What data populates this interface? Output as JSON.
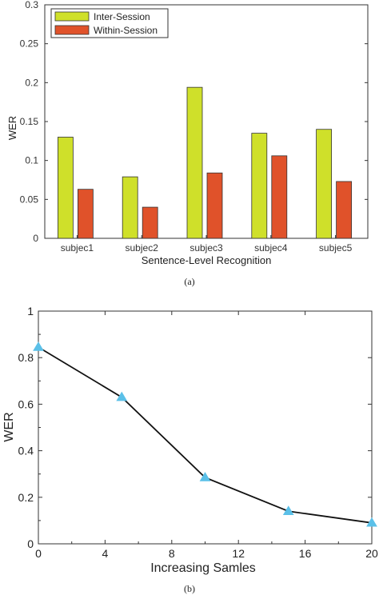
{
  "chart_data": [
    {
      "type": "bar",
      "categories": [
        "subjec1",
        "subjec2",
        "subjec3",
        "subjec4",
        "subjec5"
      ],
      "series": [
        {
          "name": "Inter-Session",
          "values": [
            0.13,
            0.079,
            0.194,
            0.135,
            0.14
          ],
          "color": "#cfe02a"
        },
        {
          "name": "Within-Session",
          "values": [
            0.063,
            0.04,
            0.084,
            0.106,
            0.073
          ],
          "color": "#e0522a"
        }
      ],
      "yticks": [
        "0",
        "0.05",
        "0.1",
        "0.15",
        "0.2",
        "0.25",
        "0.3"
      ],
      "xlabel": "Sentence-Level Recognition",
      "ylabel": "WER",
      "ylim": [
        0,
        0.3
      ],
      "legend": "top-left",
      "grid": false,
      "caption": "(a)"
    },
    {
      "type": "line",
      "x": [
        0,
        5,
        10,
        15,
        20
      ],
      "y": [
        0.845,
        0.63,
        0.285,
        0.14,
        0.09
      ],
      "xticks": [
        "0",
        "4",
        "8",
        "12",
        "16",
        "20"
      ],
      "yticks": [
        "0",
        "0.2",
        "0.4",
        "0.6",
        "0.8",
        "1"
      ],
      "xlabel": "Increasing Samles",
      "ylabel": "WER",
      "xlim": [
        0,
        20
      ],
      "ylim": [
        0,
        1
      ],
      "line_color": "#111111",
      "marker_color": "#5bc0e8",
      "grid": false,
      "caption": "(b)"
    }
  ]
}
